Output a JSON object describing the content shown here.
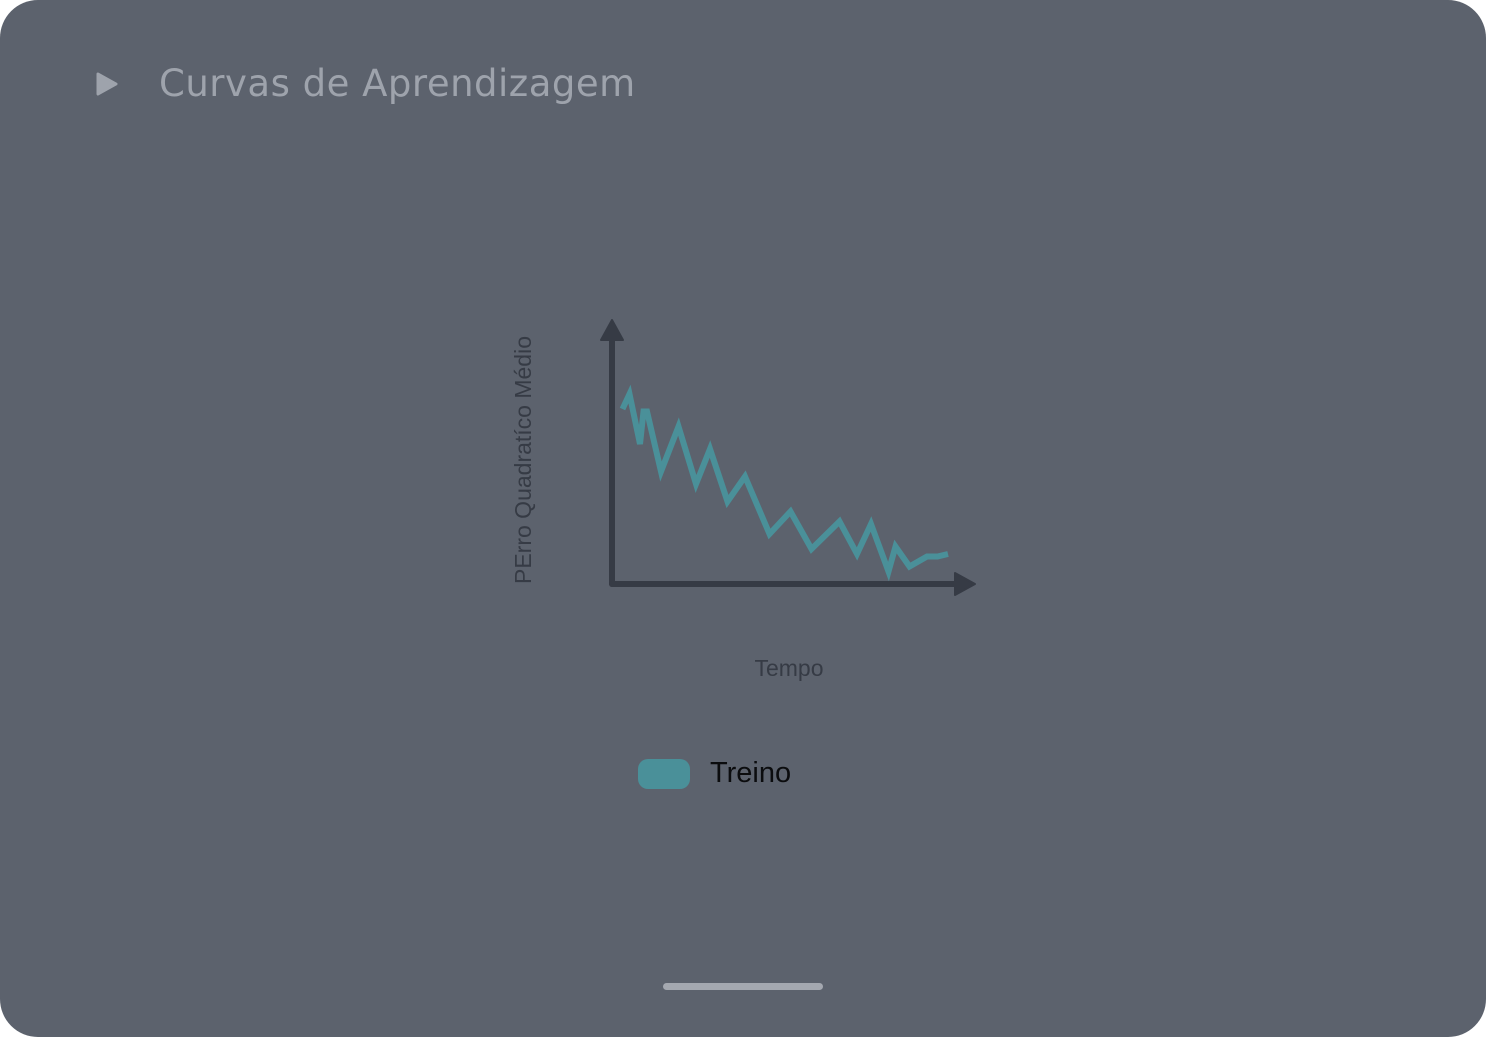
{
  "header": {
    "play_icon": "play-icon",
    "title": "Curvas de Aprendizagem"
  },
  "colors": {
    "background": "#5c626d",
    "title": "#9ea3ac",
    "axis": "#363b45",
    "series": "#4a9099"
  },
  "chart_data": {
    "type": "line",
    "title": "",
    "xlabel": "Tempo",
    "ylabel": "PErro Quadratíco Médio",
    "axis_ticks": "none",
    "xlim": [
      0,
      100
    ],
    "ylim": [
      0,
      100
    ],
    "series": [
      {
        "name": "Treino",
        "color": "#4a9099",
        "x": [
          3,
          5,
          8,
          9,
          10,
          14,
          19,
          24,
          28,
          33,
          38,
          45,
          51,
          57,
          65,
          70,
          74,
          79,
          81,
          85,
          90,
          93,
          96
        ],
        "y": [
          70,
          76,
          56,
          69,
          69,
          45,
          63,
          40,
          54,
          33,
          43,
          20,
          29,
          14,
          25,
          12,
          24,
          5,
          15,
          7,
          11,
          11,
          12
        ]
      }
    ],
    "legend": {
      "position": "bottom-center",
      "entries": [
        "Treino"
      ]
    }
  },
  "home_indicator": "home-indicator"
}
